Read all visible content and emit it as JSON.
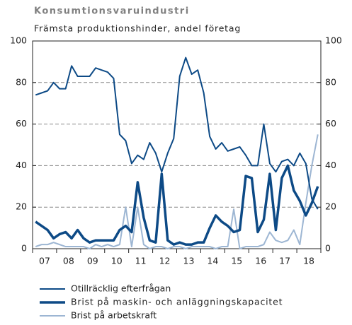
{
  "chart_data": {
    "type": "line",
    "title": "Konsumtionsvaruindustri",
    "subtitle": "Främsta produktionshinder, andel företag",
    "x": [
      2007.125,
      2007.375,
      2007.625,
      2007.875,
      2008.125,
      2008.375,
      2008.625,
      2008.875,
      2009.125,
      2009.375,
      2009.625,
      2009.875,
      2010.125,
      2010.375,
      2010.625,
      2010.875,
      2011.125,
      2011.375,
      2011.625,
      2011.875,
      2012.125,
      2012.375,
      2012.625,
      2012.875,
      2013.125,
      2013.375,
      2013.625,
      2013.875,
      2014.125,
      2014.375,
      2014.625,
      2014.875,
      2015.125,
      2015.375,
      2015.625,
      2015.875,
      2016.125,
      2016.375,
      2016.625,
      2016.875,
      2017.125,
      2017.375,
      2017.625,
      2017.875,
      2018.125,
      2018.375,
      2018.625,
      2018.875
    ],
    "xlim": [
      2007,
      2019
    ],
    "xticks": [
      2007,
      2008,
      2009,
      2010,
      2011,
      2012,
      2013,
      2014,
      2015,
      2016,
      2017,
      2018,
      2019
    ],
    "xlabels": [
      {
        "value": 2007.5,
        "label": "07"
      },
      {
        "value": 2008.5,
        "label": "08"
      },
      {
        "value": 2009.5,
        "label": "09"
      },
      {
        "value": 2010.5,
        "label": "10"
      },
      {
        "value": 2011.5,
        "label": "11"
      },
      {
        "value": 2012.5,
        "label": "12"
      },
      {
        "value": 2013.5,
        "label": "13"
      },
      {
        "value": 2014.5,
        "label": "14"
      },
      {
        "value": 2015.5,
        "label": "15"
      },
      {
        "value": 2016.5,
        "label": "16"
      },
      {
        "value": 2017.5,
        "label": "17"
      },
      {
        "value": 2018.5,
        "label": "18"
      }
    ],
    "ylim": [
      0,
      100
    ],
    "yticks": [
      0,
      20,
      40,
      60,
      80,
      100
    ],
    "y2lim": [
      0,
      100
    ],
    "y2ticks": [
      0,
      20,
      40,
      60,
      80,
      100
    ],
    "grid": true,
    "series": [
      {
        "name": "Otillräcklig efterfrågan",
        "color": "#0d4a86",
        "width": 2,
        "values": [
          74,
          75,
          76,
          80,
          77,
          77,
          88,
          83,
          83,
          83,
          87,
          86,
          85,
          82,
          55,
          52,
          41,
          45,
          43,
          51,
          46,
          37,
          46,
          53,
          83,
          92,
          84,
          86,
          75,
          54,
          48,
          51,
          47,
          48,
          49,
          45,
          40,
          40,
          60,
          41,
          37,
          42,
          43,
          40,
          46,
          41,
          24,
          19
        ]
      },
      {
        "name": "Brist på maskin- och anläggningskapacitet",
        "color": "#0d4a86",
        "width": 3.5,
        "values": [
          13,
          11,
          9,
          5,
          7,
          8,
          5,
          9,
          5,
          3,
          4,
          4,
          4,
          4,
          9,
          11,
          8,
          32,
          15,
          4,
          3,
          36,
          4,
          2,
          3,
          2,
          2,
          3,
          3,
          10,
          16,
          13,
          11,
          8,
          9,
          35,
          34,
          8,
          14,
          36,
          9,
          34,
          40,
          28,
          23,
          16,
          22,
          30
        ]
      },
      {
        "name": "Brist på arbetskraft",
        "color": "#9db6d3",
        "width": 2,
        "values": [
          1,
          2,
          2,
          3,
          2,
          1,
          1,
          1,
          1,
          0,
          2,
          1,
          2,
          1,
          2,
          20,
          1,
          20,
          2,
          0,
          1,
          1,
          0,
          1,
          1,
          0,
          1,
          1,
          1,
          1,
          0,
          1,
          1,
          19,
          0,
          1,
          1,
          1,
          2,
          8,
          4,
          3,
          4,
          9,
          2,
          22,
          40,
          55
        ]
      }
    ]
  }
}
